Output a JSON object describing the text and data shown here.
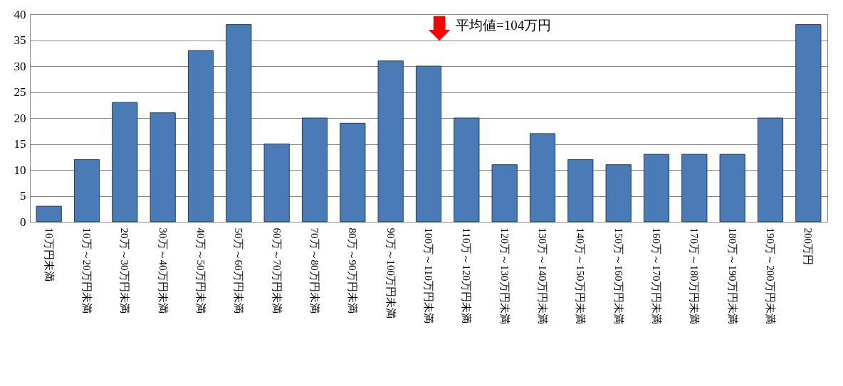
{
  "chart_data": {
    "type": "bar",
    "categories": [
      "10万円未満",
      "10万～20万円未満",
      "20万～30万円未満",
      "30万～40万円未満",
      "40万～50万円未満",
      "50万～60万円未満",
      "60万～70万円未満",
      "70万～80万円未満",
      "80万～90万円未満",
      "90万～100万円未満",
      "100万～110万円未満",
      "110万～120万円未満",
      "120万～130万円未満",
      "130万～140万円未満",
      "140万～150万円未満",
      "150万～160万円未満",
      "160万～170万円未満",
      "170万～180万円未満",
      "180万～190万円未満",
      "190万～200万円未満",
      "200万円"
    ],
    "values": [
      3,
      12,
      23,
      21,
      33,
      38,
      15,
      20,
      19,
      31,
      30,
      20,
      11,
      17,
      12,
      11,
      13,
      13,
      13,
      20,
      38
    ],
    "color": "#4a7bb7",
    "ylim": [
      0,
      40
    ],
    "yticks": [
      0,
      5,
      10,
      15,
      20,
      25,
      30,
      35,
      40
    ],
    "grid": "y",
    "annotations": [
      "平均値=104万円"
    ]
  }
}
